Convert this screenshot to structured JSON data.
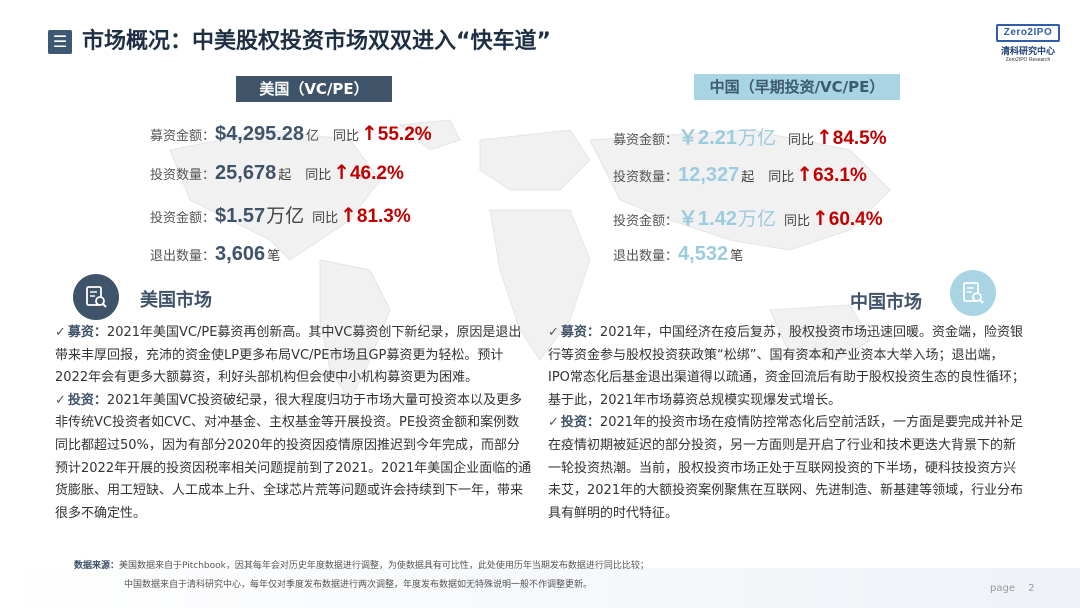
{
  "header": {
    "menu_glyph": "☰",
    "title": "市场概况：中美股权投资市场双双进入“快车道”",
    "logo": {
      "mark": "Zero2IPO",
      "cn": "清科研究中心",
      "en": "Zero2IPO Research"
    }
  },
  "us": {
    "tab": "美国（VC/PE）",
    "metrics": [
      {
        "label": "募资金额：",
        "value": "$4,295.28",
        "unit": "亿",
        "yoy": "同比",
        "up": "↑",
        "pct": "55.2%"
      },
      {
        "label": "投资数量：",
        "value": "25,678",
        "unit": "起",
        "yoy": "同比",
        "up": "↑",
        "pct": " 46.2%"
      },
      {
        "label": "投资金额：",
        "value": "$1.57",
        "unit": "万亿",
        "yoy": "同比",
        "up": "↑",
        "pct": "81.3%"
      },
      {
        "label": "退出数量：",
        "value": "3,606",
        "unit": "笔"
      }
    ],
    "section_title": "美国市场",
    "bullets": [
      {
        "keyword": "募资：",
        "text": "2021年美国VC/PE募资再创新高。其中VC募资创下新纪录，原因是退出带来丰厚回报，充沛的资金使LP更多布局VC/PE市场且GP募资更为轻松。预计2022年会有更多大额募资，利好头部机构但会使中小机构募资更为困难。"
      },
      {
        "keyword": "投资：",
        "text": "2021年美国VC投资破纪录，很大程度归功于市场大量可投资本以及更多非传统VC投资者如CVC、对冲基金、主权基金等开展投资。PE投资金额和案例数同比都超过50%，因为有部分2020年的投资因疫情原因推迟到今年完成，而部分预计2022年开展的投资因税率相关问题提前到了2021。2021年美国企业面临的通货膨胀、用工短缺、人工成本上升、全球芯片荒等问题或许会持续到下一年，带来很多不确定性。"
      }
    ]
  },
  "cn": {
    "tab": "中国（早期投资/VC/PE）",
    "metrics": [
      {
        "label": "募资金额：",
        "value": "￥2.21",
        "unit": "万亿",
        "yoy": "同比",
        "up": "↑",
        "pct": "84.5%"
      },
      {
        "label": "投资数量：",
        "value": "12,327",
        "unit": "起",
        "yoy": "同比",
        "up": "↑",
        "pct": "63.1%"
      },
      {
        "label": "投资金额：",
        "value": "￥1.42",
        "unit": "万亿",
        "yoy": "同比",
        "up": "↑",
        "pct": "60.4%"
      },
      {
        "label": "退出数量：",
        "value": "4,532",
        "unit": "笔"
      }
    ],
    "section_title": "中国市场",
    "bullets": [
      {
        "keyword": "募资：",
        "text": "2021年，中国经济在疫后复苏，股权投资市场迅速回暖。资金端，险资银行等资金参与股权投资获政策“松绑”、国有资本和产业资本大举入场；退出端，IPO常态化后基金退出渠道得以疏通，资金回流后有助于股权投资生态的良性循环；基于此，2021年市场募资总规模实现爆发式增长。"
      },
      {
        "keyword": "投资：",
        "text": "2021年的投资市场在疫情防控常态化后空前活跃，一方面是要完成并补足在疫情初期被延迟的部分投资，另一方面则是开启了行业和技术更迭大背景下的新一轮投资热潮。当前，股权投资市场正处于互联网投资的下半场，硬科技投资方兴未艾，2021年的大额投资案例聚焦在互联网、先进制造、新基建等领域，行业分布具有鲜明的时代特征。"
      }
    ]
  },
  "footer": {
    "source_label": "数据来源：",
    "source_line1": "美国数据来自于Pitchbook，因其每年会对历史年度数据进行调整，为使数据具有可比性，此处使用历年当期发布数据进行同比比较；",
    "source_line2": "中国数据来自于清科研究中心，每年仅对季度发布数据进行两次调整，年度发布数据如无特殊说明一般不作调整更新。",
    "page_label": "page",
    "page_number": "2"
  }
}
